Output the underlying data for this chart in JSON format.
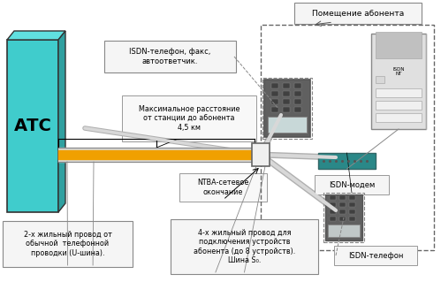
{
  "bg_color": "#ffffff",
  "atc_color": "#40cccc",
  "atc_label": "АТС",
  "cable_color": "#f0a000",
  "label_isdn_phone_fax": "ISDN-телефон, факс,\nавтоответчик.",
  "label_max_distance": "Максимальное расстояние\nот станции до абонента\n4,5 км",
  "label_2wire": "2-х жильный провод от\nобычной  телефонной\nпроводки (U-шина).",
  "label_4wire": "4-х жильный провод для\nподключения устройств\nабонента (до 8 устройств).\nШина S₀.",
  "label_pomeshenie": "Помещение абонента",
  "label_ntba": "NTBA-сетевое\nокончание",
  "label_isdn_modem": "ISDN-модем",
  "label_isdn_phone": "ISDN-телефон"
}
